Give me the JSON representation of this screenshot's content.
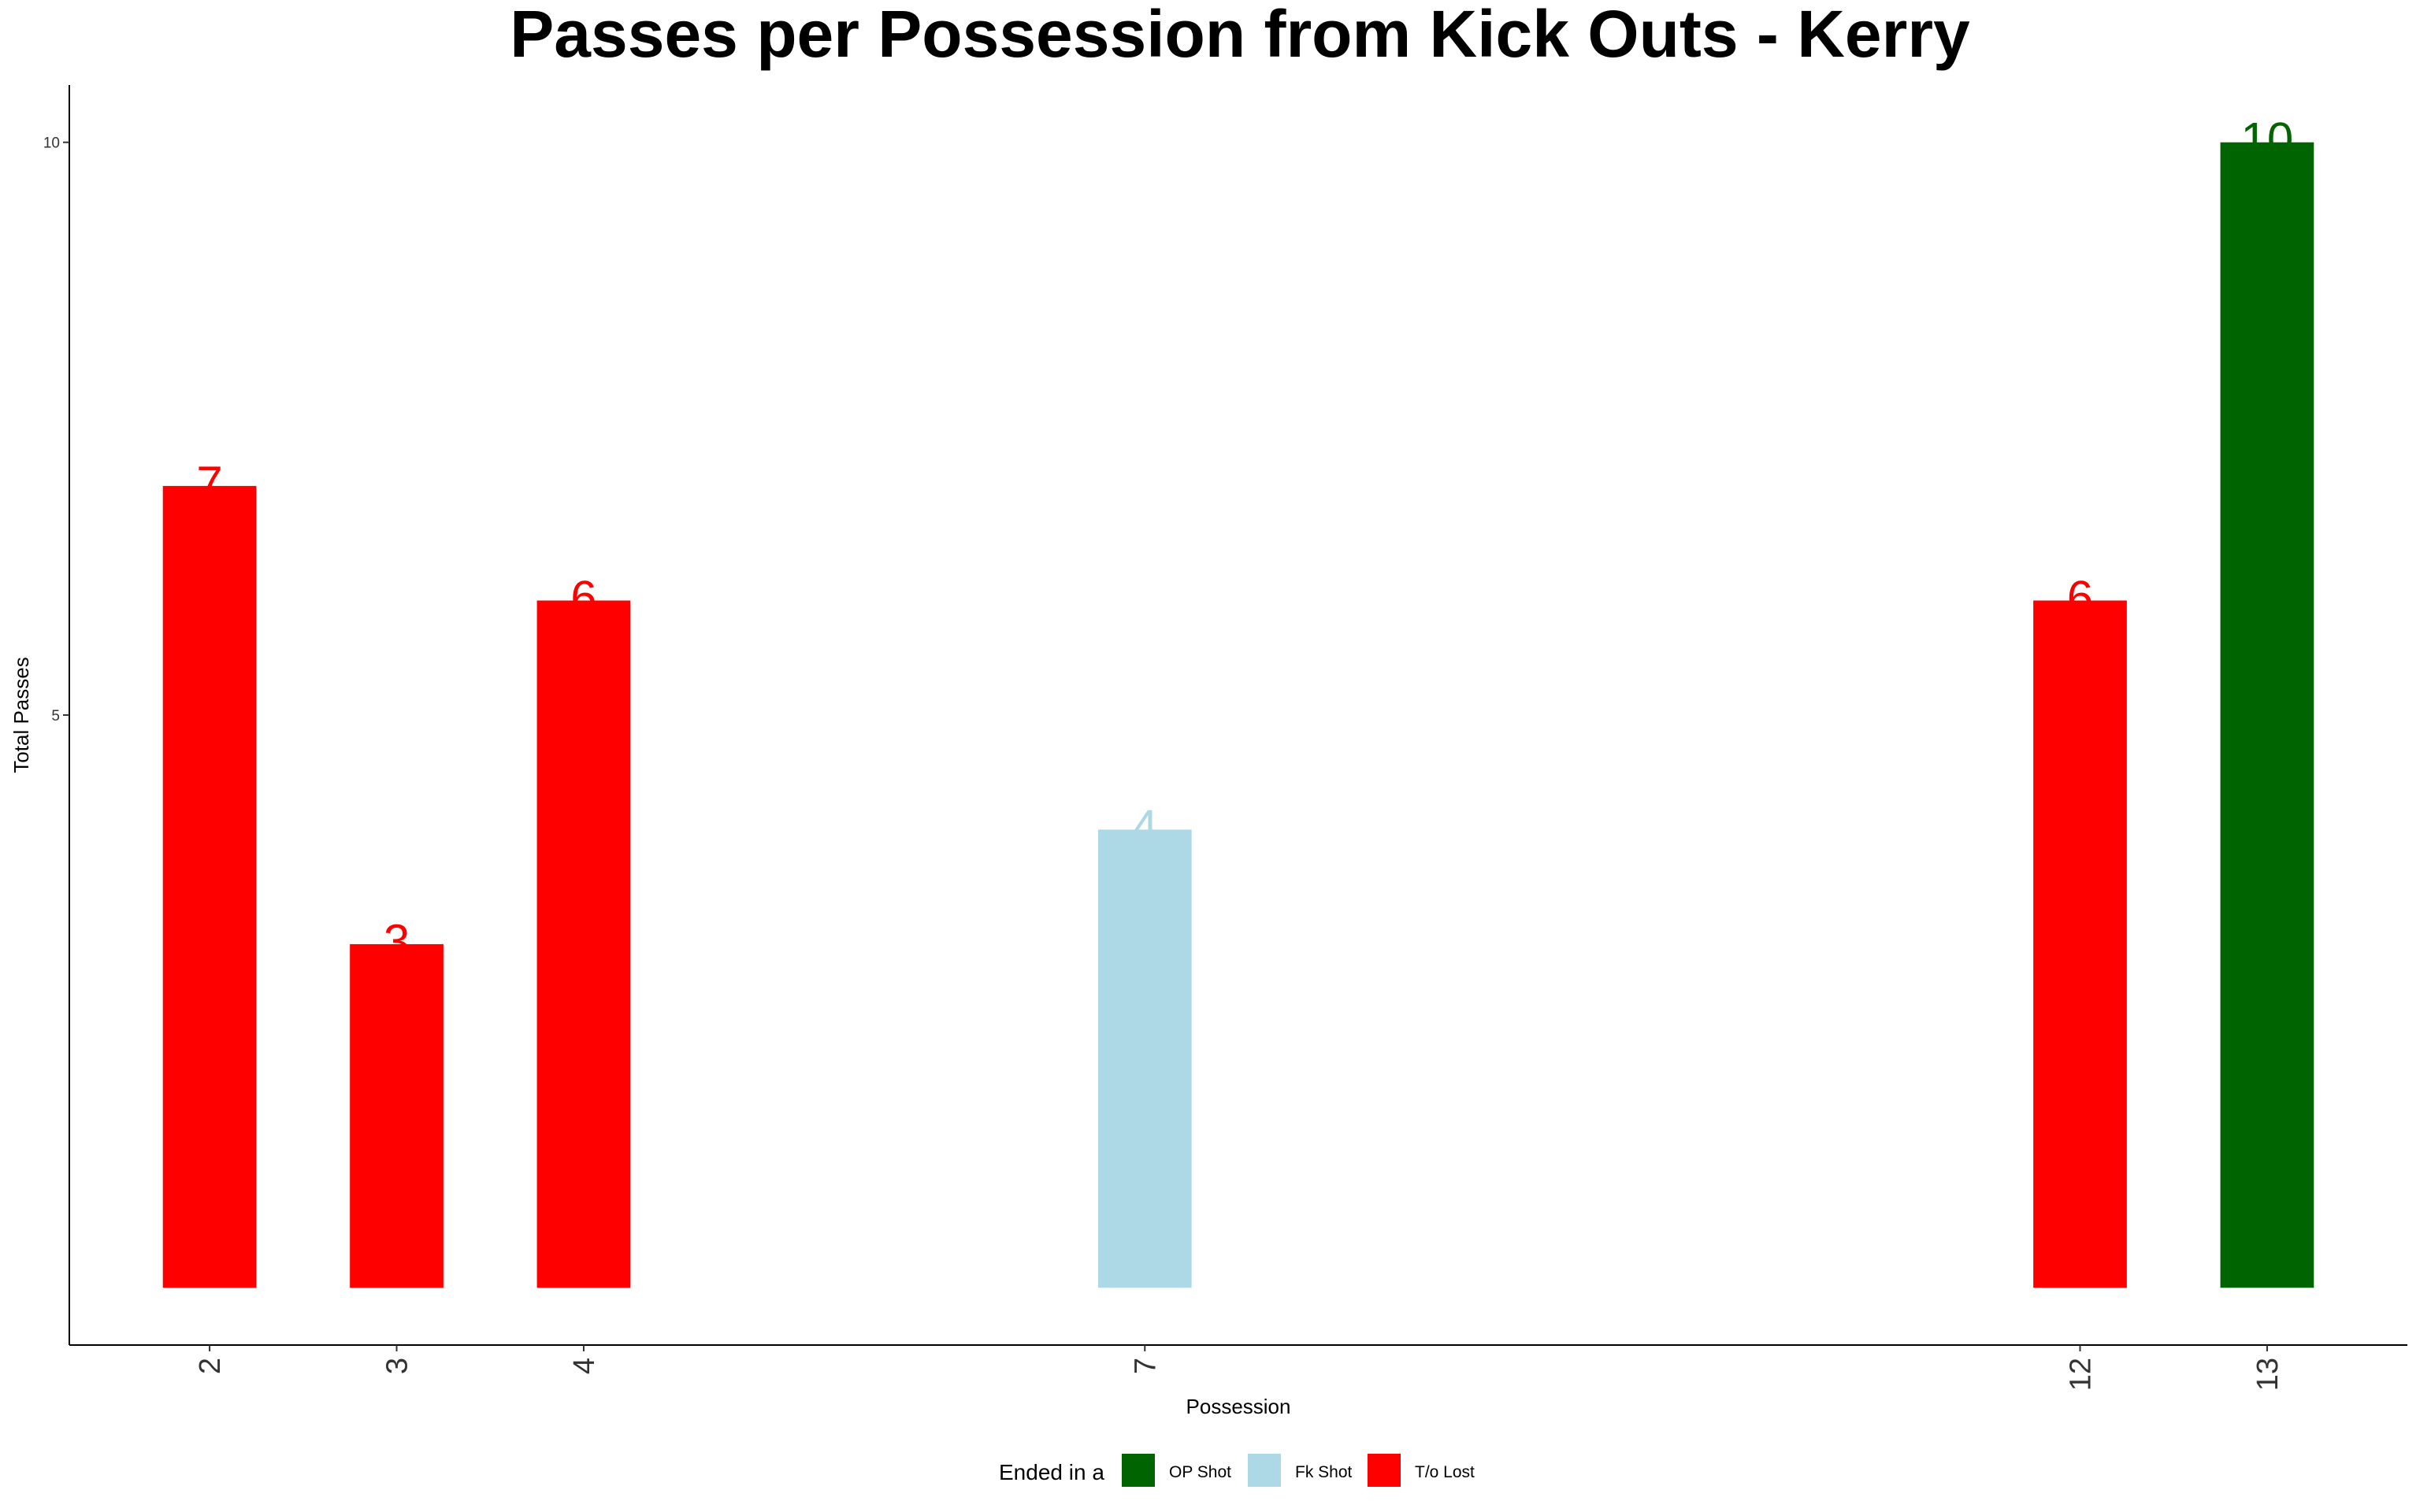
{
  "chart_data": {
    "type": "bar",
    "title": "Passes per Possession from Kick Outs - Kerry",
    "xlabel": "Possession",
    "ylabel": "Total Passes",
    "x": [
      2,
      3,
      4,
      7,
      12,
      13
    ],
    "x_tick_labels": [
      "2",
      "3",
      "4",
      "7",
      "12",
      "13"
    ],
    "values": [
      7,
      3,
      6,
      4,
      6,
      10
    ],
    "value_labels": [
      "7",
      "3",
      "6",
      "4",
      "6",
      "10"
    ],
    "categories_ended": [
      "T/o Lost",
      "T/o Lost",
      "T/o Lost",
      "Fk Shot",
      "T/o Lost",
      "OP Shot"
    ],
    "y_ticks": [
      5,
      10
    ],
    "y_tick_labels": [
      "5",
      "10"
    ],
    "ylim": [
      -0.5,
      10.5
    ],
    "bar_baseline": 0,
    "xlim": [
      1.25,
      13.75
    ],
    "grid": false,
    "legend": {
      "title": "Ended in a",
      "position": "bottom",
      "entries": [
        {
          "name": "OP Shot",
          "color": "#006400"
        },
        {
          "name": "Fk Shot",
          "color": "#ADD8E6"
        },
        {
          "name": "T/o Lost",
          "color": "#FF0000"
        }
      ]
    }
  }
}
